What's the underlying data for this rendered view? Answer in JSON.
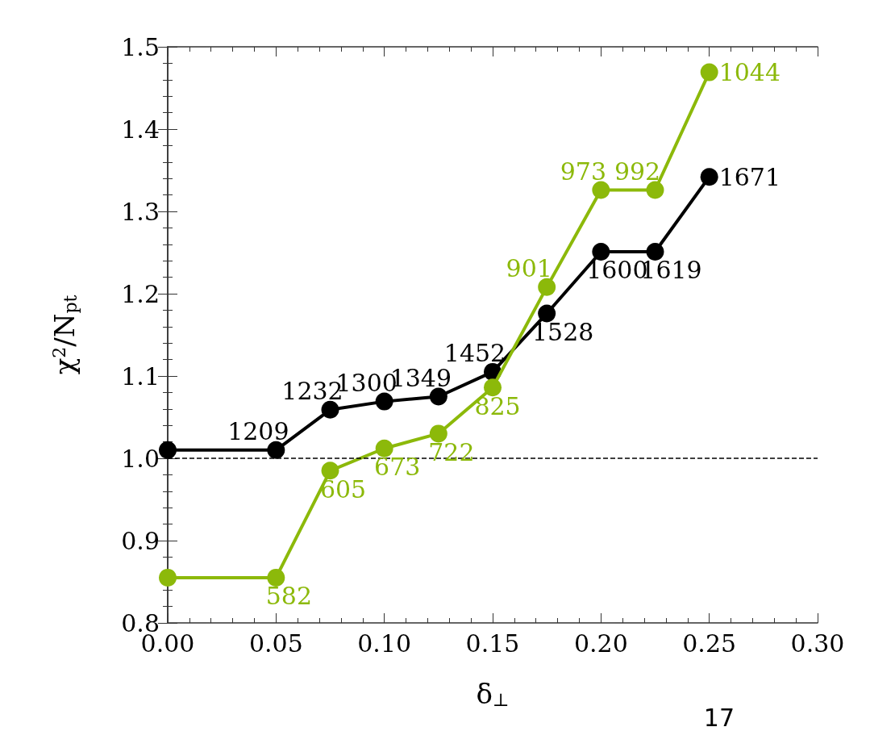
{
  "chart_data": {
    "type": "line",
    "xlabel": "δ$_{⊥}$",
    "ylabel": "χ$^{2}$/N$_{pt}$",
    "x": [
      0,
      0.05,
      0.075,
      0.1,
      0.125,
      0.15,
      0.175,
      0.2,
      0.225,
      0.25
    ],
    "series": [
      {
        "color": "#000000",
        "values": [
          1.01,
          1.01,
          1.059,
          1.069,
          1.075,
          1.105,
          1.176,
          1.251,
          1.251,
          1.342
        ]
      },
      {
        "color": "#8cb90a",
        "values": [
          0.855,
          0.855,
          0.985,
          1.012,
          1.03,
          1.086,
          1.208,
          1.326,
          1.326,
          1.469
        ]
      }
    ],
    "xlim": [
      0,
      0.3
    ],
    "xticks": [
      {
        "value": 0,
        "label": "0.00"
      },
      {
        "value": 0.05,
        "label": "0.05"
      },
      {
        "value": 0.1,
        "label": "0.10"
      },
      {
        "value": 0.15,
        "label": "0.15"
      },
      {
        "value": 0.2,
        "label": "0.20"
      },
      {
        "value": 0.25,
        "label": "0.25"
      },
      {
        "value": 0.3,
        "label": "0.30"
      }
    ],
    "ylim": [
      0.8,
      1.5
    ],
    "yticks": [
      {
        "value": 0.8,
        "label": "0.8"
      },
      {
        "value": 0.9,
        "label": "0.9"
      },
      {
        "value": 1,
        "label": "1.0"
      },
      {
        "value": 1.1,
        "label": "1.1"
      },
      {
        "value": 1.2,
        "label": "1.2"
      },
      {
        "value": 1.3,
        "label": "1.3"
      },
      {
        "value": 1.4,
        "label": "1.4"
      },
      {
        "value": 1.5,
        "label": "1.5"
      }
    ],
    "ref_lines": [
      {
        "axis": "y",
        "value": 1,
        "color": "#000000",
        "line_style": "dashed"
      }
    ],
    "grid": false,
    "marker": "circle",
    "line_style": "solid",
    "annotations": [
      {
        "text": "1209",
        "x": 0.05,
        "y": 1.01
      },
      {
        "text": "1232",
        "x": 0.075,
        "y": 1.059
      },
      {
        "text": "1300",
        "x": 0.1,
        "y": 1.069
      },
      {
        "text": "1349",
        "x": 0.125,
        "y": 1.075
      },
      {
        "text": "1452",
        "x": 0.15,
        "y": 1.105
      },
      {
        "text": "1528",
        "x": 0.175,
        "y": 1.176
      },
      {
        "text": "1600",
        "x": 0.2,
        "y": 1.251
      },
      {
        "text": "1619",
        "x": 0.225,
        "y": 1.251
      },
      {
        "text": "1671",
        "x": 0.25,
        "y": 1.342
      },
      {
        "text": "582",
        "x": 0.05,
        "y": 0.855
      },
      {
        "text": "605",
        "x": 0.075,
        "y": 0.985
      },
      {
        "text": "673",
        "x": 0.1,
        "y": 1.012
      },
      {
        "text": "722",
        "x": 0.125,
        "y": 1.03
      },
      {
        "text": "825",
        "x": 0.15,
        "y": 1.086
      },
      {
        "text": "901",
        "x": 0.175,
        "y": 1.208
      },
      {
        "text": "973",
        "x": 0.2,
        "y": 1.326
      },
      {
        "text": "992",
        "x": 0.225,
        "y": 1.326
      },
      {
        "text": "1044",
        "x": 0.25,
        "y": 1.469
      },
      "17"
    ]
  }
}
